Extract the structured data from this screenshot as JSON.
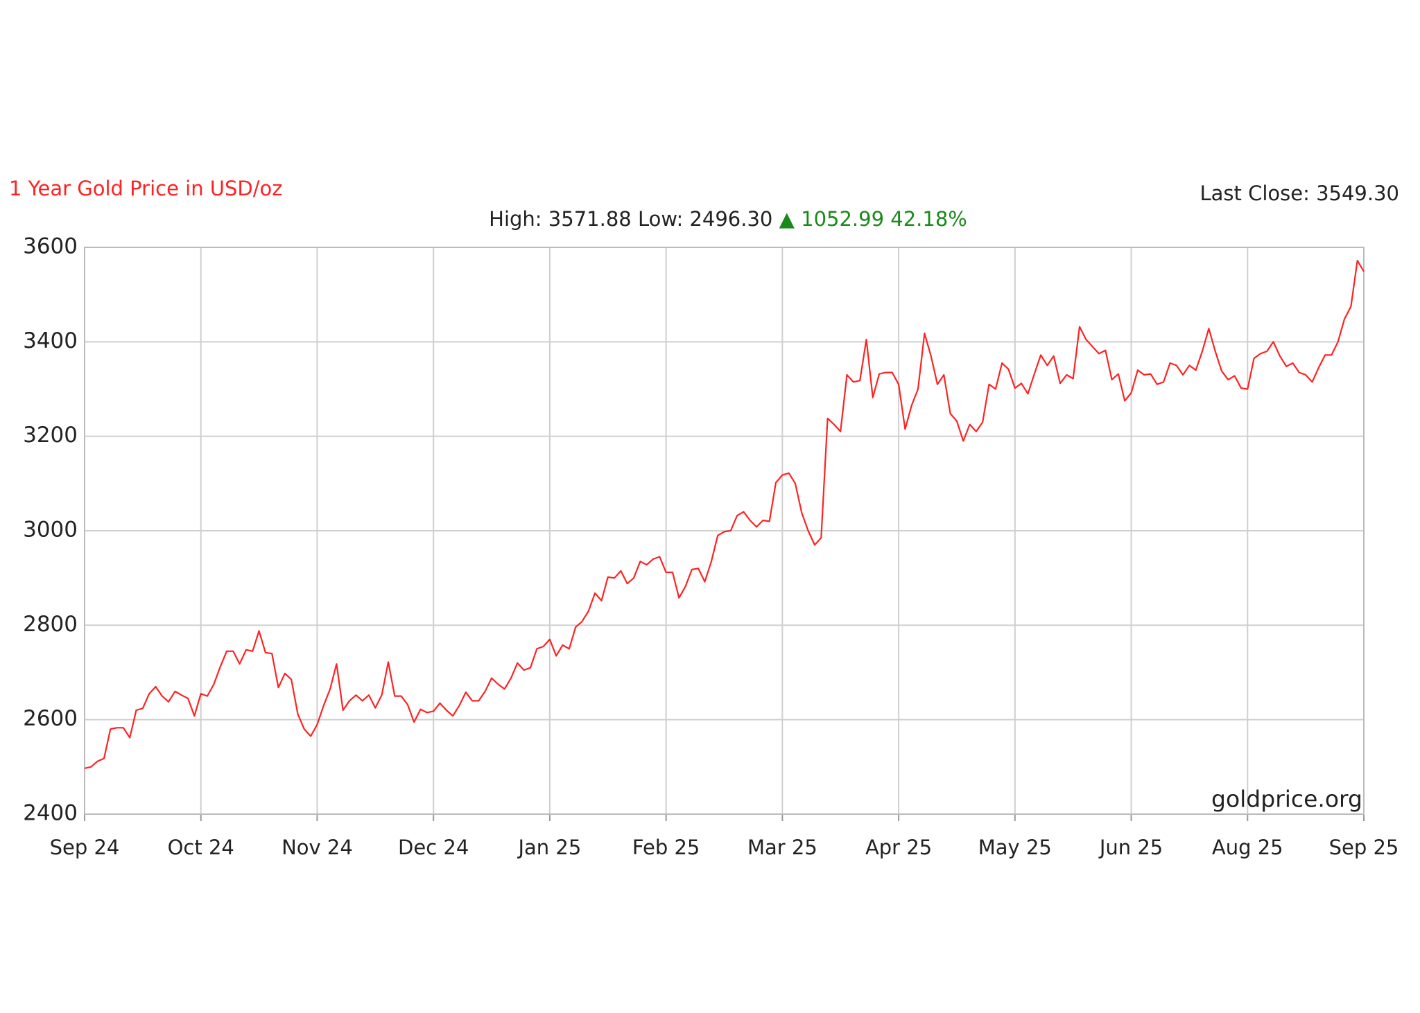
{
  "chart_data": {
    "type": "line",
    "title": "1 Year Gold Price in USD/oz",
    "last_close": "Last Close: 3549.30",
    "high_low": "High: 3571.88 Low: 2496.30",
    "change_arrow": "▲",
    "change": "1052.99 42.18%",
    "watermark": "goldprice.org",
    "color": "#ff2222",
    "change_color": "#1a8a1a",
    "grid": true,
    "ylim": [
      2400,
      3600
    ],
    "yticks": [
      2400,
      2600,
      2800,
      3000,
      3200,
      3400,
      3600
    ],
    "xtick_labels": [
      "Sep 24",
      "Oct 24",
      "Nov 24",
      "Dec 24",
      "Jan 25",
      "Feb 25",
      "Mar 25",
      "Apr 25",
      "May 25",
      "Jun 25",
      "Aug 25",
      "Sep 25"
    ],
    "values": [
      2497,
      2500,
      2512,
      2518,
      2580,
      2583,
      2583,
      2562,
      2620,
      2624,
      2655,
      2670,
      2650,
      2638,
      2660,
      2652,
      2645,
      2608,
      2655,
      2650,
      2675,
      2712,
      2745,
      2745,
      2718,
      2748,
      2745,
      2788,
      2742,
      2740,
      2668,
      2698,
      2685,
      2612,
      2580,
      2565,
      2590,
      2630,
      2665,
      2718,
      2620,
      2640,
      2652,
      2640,
      2652,
      2625,
      2652,
      2722,
      2650,
      2650,
      2632,
      2595,
      2622,
      2615,
      2618,
      2635,
      2620,
      2608,
      2630,
      2658,
      2640,
      2640,
      2660,
      2688,
      2675,
      2665,
      2688,
      2720,
      2705,
      2710,
      2750,
      2755,
      2770,
      2735,
      2758,
      2750,
      2796,
      2808,
      2830,
      2868,
      2852,
      2902,
      2900,
      2915,
      2888,
      2900,
      2935,
      2928,
      2940,
      2945,
      2912,
      2912,
      2858,
      2882,
      2918,
      2920,
      2892,
      2935,
      2990,
      2998,
      3000,
      3032,
      3040,
      3022,
      3008,
      3022,
      3020,
      3102,
      3118,
      3122,
      3100,
      3038,
      3000,
      2970,
      2985,
      3238,
      3225,
      3210,
      3330,
      3315,
      3318,
      3405,
      3282,
      3332,
      3335,
      3335,
      3310,
      3215,
      3265,
      3300,
      3418,
      3370,
      3310,
      3330,
      3248,
      3232,
      3190,
      3225,
      3210,
      3230,
      3310,
      3300,
      3355,
      3342,
      3302,
      3312,
      3290,
      3332,
      3372,
      3350,
      3370,
      3312,
      3330,
      3322,
      3432,
      3405,
      3390,
      3375,
      3382,
      3320,
      3332,
      3275,
      3292,
      3340,
      3330,
      3332,
      3310,
      3315,
      3355,
      3350,
      3330,
      3350,
      3340,
      3380,
      3428,
      3380,
      3338,
      3320,
      3328,
      3302,
      3300,
      3365,
      3375,
      3380,
      3400,
      3370,
      3348,
      3355,
      3335,
      3330,
      3315,
      3345,
      3372,
      3372,
      3400,
      3448,
      3475,
      3572,
      3549
    ]
  }
}
